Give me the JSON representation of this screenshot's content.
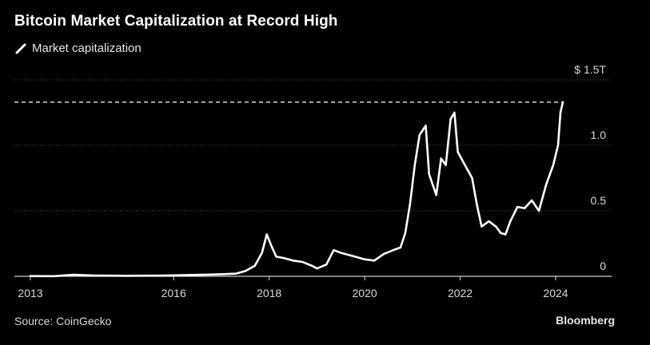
{
  "title": "Bitcoin Market Capitalization at Record High",
  "legend": {
    "label": "Market capitalization"
  },
  "source": "Source: CoinGecko",
  "brand": "Bloomberg",
  "colors": {
    "background": "#000000",
    "line": "#ffffff",
    "grid": "#555555",
    "text": "#d9d9d9"
  },
  "chart_data": {
    "type": "line",
    "title": "Bitcoin Market Capitalization at Record High",
    "xlabel": "",
    "ylabel": "",
    "xlim": [
      2013.0,
      2024.9
    ],
    "ylim": [
      0,
      1.5
    ],
    "x_ticks": [
      {
        "value": 2013,
        "label": "2013"
      },
      {
        "value": 2016,
        "label": "2016"
      },
      {
        "value": 2018,
        "label": "2018"
      },
      {
        "value": 2020,
        "label": "2020"
      },
      {
        "value": 2022,
        "label": "2022"
      },
      {
        "value": 2024,
        "label": "2024"
      }
    ],
    "y_ticks": [
      {
        "value": 0,
        "label": "0"
      },
      {
        "value": 0.5,
        "label": "0.5"
      },
      {
        "value": 1.0,
        "label": "1.0"
      },
      {
        "value": 1.5,
        "label": "$ 1.5T"
      }
    ],
    "grid": "horizontal-dotted",
    "legend_position": "top-left",
    "reference_line": {
      "value": 1.33,
      "style": "dashed"
    },
    "series": [
      {
        "name": "Market capitalization",
        "x": [
          2013.0,
          2013.5,
          2013.9,
          2014.3,
          2015.0,
          2015.8,
          2016.5,
          2017.0,
          2017.3,
          2017.5,
          2017.7,
          2017.85,
          2017.95,
          2018.05,
          2018.15,
          2018.3,
          2018.5,
          2018.7,
          2018.9,
          2019.0,
          2019.2,
          2019.35,
          2019.5,
          2019.6,
          2019.8,
          2020.0,
          2020.2,
          2020.4,
          2020.6,
          2020.75,
          2020.85,
          2020.95,
          2021.05,
          2021.15,
          2021.28,
          2021.35,
          2021.5,
          2021.6,
          2021.7,
          2021.8,
          2021.88,
          2021.95,
          2022.1,
          2022.25,
          2022.35,
          2022.45,
          2022.6,
          2022.75,
          2022.85,
          2022.95,
          2023.05,
          2023.2,
          2023.35,
          2023.5,
          2023.65,
          2023.8,
          2023.95,
          2024.05,
          2024.1,
          2024.15
        ],
        "values": [
          0.002,
          0.001,
          0.012,
          0.007,
          0.004,
          0.006,
          0.011,
          0.016,
          0.02,
          0.04,
          0.08,
          0.18,
          0.32,
          0.23,
          0.15,
          0.14,
          0.12,
          0.11,
          0.08,
          0.06,
          0.09,
          0.2,
          0.18,
          0.17,
          0.15,
          0.13,
          0.12,
          0.17,
          0.2,
          0.22,
          0.33,
          0.55,
          0.85,
          1.08,
          1.15,
          0.78,
          0.62,
          0.9,
          0.85,
          1.2,
          1.25,
          0.95,
          0.85,
          0.75,
          0.55,
          0.38,
          0.42,
          0.38,
          0.33,
          0.32,
          0.42,
          0.53,
          0.52,
          0.58,
          0.5,
          0.7,
          0.85,
          1.0,
          1.25,
          1.33
        ]
      }
    ]
  }
}
